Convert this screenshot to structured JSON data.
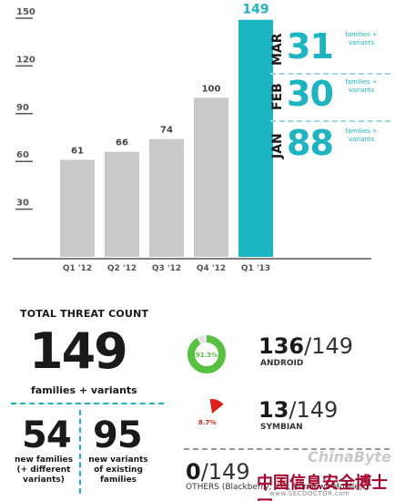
{
  "chart_data": {
    "type": "bar",
    "categories": [
      "Q1 '12",
      "Q2 '12",
      "Q3 '12",
      "Q4 '12",
      "Q1 '13"
    ],
    "values": [
      61,
      66,
      74,
      100,
      149
    ],
    "highlight_index": 4,
    "yticks": [
      30,
      60,
      90,
      120,
      150
    ],
    "ylim": [
      0,
      150
    ],
    "grid": false,
    "colors": {
      "bar": "#c8c9cb",
      "highlight": "#1ab5c1",
      "axis": "#555555"
    }
  },
  "monthly": [
    {
      "month": "MAR",
      "value": "31",
      "note": "families + variants"
    },
    {
      "month": "FEB",
      "value": "30",
      "note": "families + variants"
    },
    {
      "month": "JAN",
      "value": "88",
      "note": "families + variants"
    }
  ],
  "total": {
    "title": "TOTAL THREAT COUNT",
    "value": "149",
    "subtitle": "families + variants",
    "new_families": {
      "value": "54",
      "label_1": "new families",
      "label_2": "(+ different",
      "label_3": "variants)"
    },
    "new_variants": {
      "value": "95",
      "label_1": "new variants",
      "label_2": "of existing",
      "label_3": "families"
    }
  },
  "platforms": [
    {
      "count": "136",
      "total": "/149",
      "name": "ANDROID",
      "percent_label": "91.3%",
      "percent": 91.3,
      "color": "#57c140"
    },
    {
      "count": "13",
      "total": "/149",
      "name": "SYMBIAN",
      "percent_label": "8.7%",
      "percent": 8.7,
      "color": "#e0201b"
    },
    {
      "count": "0",
      "total": "/149",
      "name": "OTHERS (Blackberry, iOS, Windows Mobile)"
    }
  ],
  "watermarks": {
    "site": "ChinaByte",
    "cn": "中国信息安全博士网",
    "url": "www.SECDOCTOR.com"
  }
}
